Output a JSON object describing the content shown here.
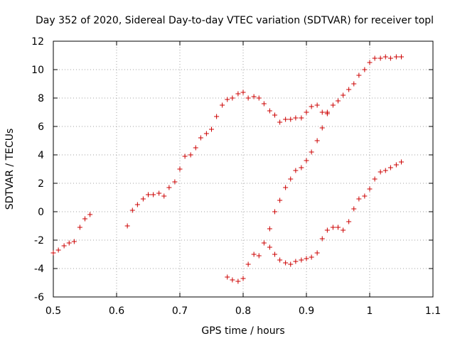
{
  "chart_data": {
    "type": "scatter",
    "title": "Day 352 of 2020, Sidereal Day-to-day VTEC variation (SDTVAR) for receiver topl",
    "xlabel": "GPS time / hours",
    "ylabel": "SDTVAR / TECUs",
    "xlim": [
      0.5,
      1.1
    ],
    "ylim": [
      -6,
      12
    ],
    "x_ticks": [
      0.5,
      0.6,
      0.7,
      0.8,
      0.9,
      1.0,
      1.1
    ],
    "x_tick_labels": [
      "0.5",
      "0.6",
      "0.7",
      "0.8",
      "0.9",
      "1",
      "1.1"
    ],
    "y_ticks": [
      -6,
      -4,
      -2,
      0,
      2,
      4,
      6,
      8,
      10,
      12
    ],
    "y_tick_labels": [
      "-6",
      "-4",
      "-2",
      "0",
      "2",
      "4",
      "6",
      "8",
      "10",
      "12"
    ],
    "grid": true,
    "marker": "+",
    "color": "#cc0000",
    "points": [
      [
        0.5,
        -2.9
      ],
      [
        0.508,
        -2.7
      ],
      [
        0.517,
        -2.4
      ],
      [
        0.525,
        -2.2
      ],
      [
        0.533,
        -2.1
      ],
      [
        0.542,
        -1.1
      ],
      [
        0.55,
        -0.5
      ],
      [
        0.558,
        -0.2
      ],
      [
        0.617,
        -1.0
      ],
      [
        0.625,
        0.1
      ],
      [
        0.633,
        0.5
      ],
      [
        0.642,
        0.9
      ],
      [
        0.65,
        1.2
      ],
      [
        0.658,
        1.2
      ],
      [
        0.667,
        1.3
      ],
      [
        0.675,
        1.1
      ],
      [
        0.683,
        1.7
      ],
      [
        0.692,
        2.1
      ],
      [
        0.7,
        3.0
      ],
      [
        0.708,
        3.9
      ],
      [
        0.717,
        4.0
      ],
      [
        0.725,
        4.5
      ],
      [
        0.733,
        5.2
      ],
      [
        0.742,
        5.5
      ],
      [
        0.75,
        5.8
      ],
      [
        0.758,
        6.7
      ],
      [
        0.767,
        7.5
      ],
      [
        0.775,
        7.9
      ],
      [
        0.783,
        8.0
      ],
      [
        0.792,
        8.3
      ],
      [
        0.8,
        8.4
      ],
      [
        0.808,
        8.0
      ],
      [
        0.817,
        8.1
      ],
      [
        0.825,
        8.0
      ],
      [
        0.833,
        7.6
      ],
      [
        0.842,
        7.1
      ],
      [
        0.85,
        6.8
      ],
      [
        0.858,
        6.3
      ],
      [
        0.867,
        6.5
      ],
      [
        0.875,
        6.5
      ],
      [
        0.883,
        6.6
      ],
      [
        0.892,
        6.6
      ],
      [
        0.9,
        7.0
      ],
      [
        0.908,
        7.4
      ],
      [
        0.917,
        7.5
      ],
      [
        0.925,
        7.0
      ],
      [
        0.933,
        6.9
      ],
      [
        0.933,
        7.0
      ],
      [
        0.942,
        7.5
      ],
      [
        0.95,
        7.8
      ],
      [
        0.958,
        8.2
      ],
      [
        0.967,
        8.6
      ],
      [
        0.975,
        9.0
      ],
      [
        0.983,
        9.6
      ],
      [
        0.992,
        10.0
      ],
      [
        1.0,
        10.5
      ],
      [
        1.008,
        10.8
      ],
      [
        1.017,
        10.8
      ],
      [
        1.025,
        10.9
      ],
      [
        1.033,
        10.8
      ],
      [
        1.042,
        10.9
      ],
      [
        1.05,
        10.9
      ],
      [
        0.775,
        -4.6
      ],
      [
        0.783,
        -4.8
      ],
      [
        0.792,
        -4.9
      ],
      [
        0.8,
        -4.7
      ],
      [
        0.808,
        -3.7
      ],
      [
        0.817,
        -3.0
      ],
      [
        0.825,
        -3.1
      ],
      [
        0.833,
        -2.2
      ],
      [
        0.842,
        -2.5
      ],
      [
        0.85,
        -3.0
      ],
      [
        0.858,
        -3.4
      ],
      [
        0.867,
        -3.6
      ],
      [
        0.875,
        -3.7
      ],
      [
        0.883,
        -3.5
      ],
      [
        0.892,
        -3.4
      ],
      [
        0.9,
        -3.3
      ],
      [
        0.908,
        -3.2
      ],
      [
        0.917,
        -2.9
      ],
      [
        0.925,
        -1.9
      ],
      [
        0.933,
        -1.3
      ],
      [
        0.942,
        -1.1
      ],
      [
        0.95,
        -1.1
      ],
      [
        0.958,
        -1.3
      ],
      [
        0.967,
        -0.7
      ],
      [
        0.975,
        0.2
      ],
      [
        0.983,
        0.9
      ],
      [
        0.992,
        1.1
      ],
      [
        1.0,
        1.6
      ],
      [
        1.008,
        2.3
      ],
      [
        1.017,
        2.8
      ],
      [
        1.025,
        2.9
      ],
      [
        1.033,
        3.1
      ],
      [
        1.042,
        3.3
      ],
      [
        1.05,
        3.5
      ],
      [
        0.842,
        -1.2
      ],
      [
        0.85,
        0.0
      ],
      [
        0.858,
        0.8
      ],
      [
        0.867,
        1.7
      ],
      [
        0.875,
        2.3
      ],
      [
        0.883,
        2.9
      ],
      [
        0.892,
        3.1
      ],
      [
        0.9,
        3.6
      ],
      [
        0.908,
        4.2
      ],
      [
        0.917,
        5.0
      ],
      [
        0.925,
        5.9
      ]
    ]
  }
}
